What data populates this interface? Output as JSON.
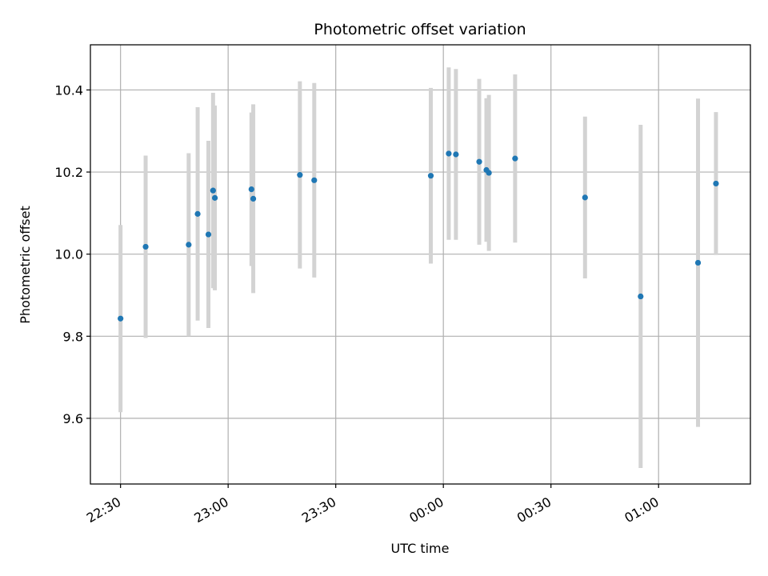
{
  "chart_data": {
    "type": "scatter",
    "title": "Photometric offset variation",
    "xlabel": "UTC time",
    "ylabel": "Photometric offset",
    "x_tick_labels": [
      "22:30",
      "23:00",
      "23:30",
      "00:00",
      "00:30",
      "01:00"
    ],
    "x_tick_minutes": [
      0,
      30,
      60,
      90,
      120,
      150
    ],
    "y_ticks": [
      9.6,
      9.8,
      10.0,
      10.2,
      10.4
    ],
    "y_tick_labels": [
      "9.6",
      "9.8",
      "10.0",
      "10.2",
      "10.4"
    ],
    "xlim_minutes": [
      -8.4,
      175.6
    ],
    "ylim": [
      9.44,
      10.51
    ],
    "grid": true,
    "colors": {
      "point": "#1f77b4",
      "errorbar": "#d3d3d3",
      "grid": "#b0b0b0",
      "axis": "#000000"
    },
    "points": [
      {
        "t": "22:30",
        "y": 9.843,
        "err": 0.228
      },
      {
        "t": "22:37",
        "y": 10.018,
        "err": 0.222
      },
      {
        "t": "22:49",
        "y": 10.023,
        "err": 0.223
      },
      {
        "t": "22:51.5",
        "y": 10.098,
        "err": 0.26
      },
      {
        "t": "22:54.5",
        "y": 10.048,
        "err": 0.228
      },
      {
        "t": "22:55.8",
        "y": 10.155,
        "err": 0.238
      },
      {
        "t": "22:56.3",
        "y": 10.137,
        "err": 0.225
      },
      {
        "t": "23:06.5",
        "y": 10.158,
        "err": 0.187
      },
      {
        "t": "23:07",
        "y": 10.135,
        "err": 0.23
      },
      {
        "t": "23:20",
        "y": 10.193,
        "err": 0.228
      },
      {
        "t": "23:24",
        "y": 10.18,
        "err": 0.237
      },
      {
        "t": "23:56.5",
        "y": 10.191,
        "err": 0.214
      },
      {
        "t": "00:01.5",
        "y": 10.245,
        "err": 0.21
      },
      {
        "t": "00:03.5",
        "y": 10.243,
        "err": 0.208
      },
      {
        "t": "00:10",
        "y": 10.225,
        "err": 0.202
      },
      {
        "t": "00:12",
        "y": 10.205,
        "err": 0.175
      },
      {
        "t": "00:12.7",
        "y": 10.198,
        "err": 0.19
      },
      {
        "t": "00:20",
        "y": 10.233,
        "err": 0.205
      },
      {
        "t": "00:39.5",
        "y": 10.138,
        "err": 0.197
      },
      {
        "t": "00:55",
        "y": 9.897,
        "err": 0.418
      },
      {
        "t": "01:11",
        "y": 9.979,
        "err": 0.4
      },
      {
        "t": "01:16",
        "y": 10.172,
        "err": 0.174
      }
    ]
  }
}
